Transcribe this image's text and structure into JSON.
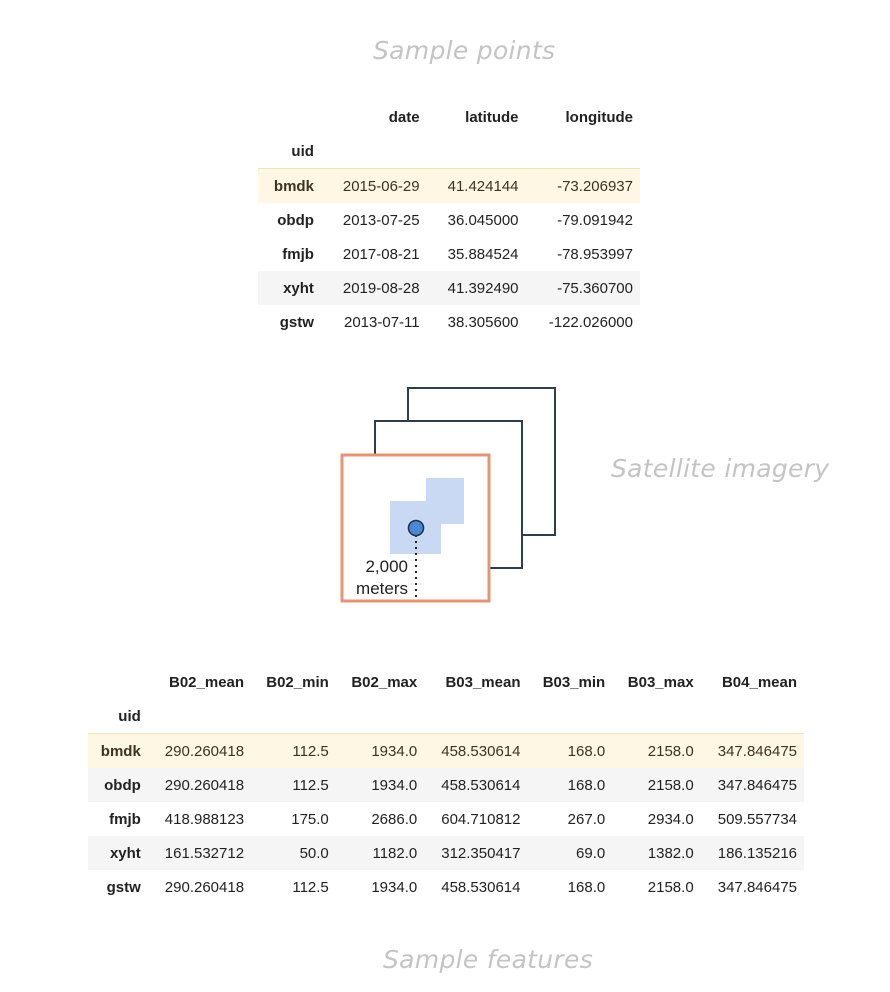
{
  "captions": {
    "top": "Sample points",
    "middle": "Satellite imagery",
    "bottom": "Sample features"
  },
  "points_table": {
    "columns": [
      "date",
      "latitude",
      "longitude"
    ],
    "index_name": "uid",
    "rows": [
      {
        "uid": "bmdk",
        "date": "2015-06-29",
        "latitude": "41.424144",
        "longitude": "-73.206937"
      },
      {
        "uid": "obdp",
        "date": "2013-07-25",
        "latitude": "36.045000",
        "longitude": "-79.091942"
      },
      {
        "uid": "fmjb",
        "date": "2017-08-21",
        "latitude": "35.884524",
        "longitude": "-78.953997"
      },
      {
        "uid": "xyht",
        "date": "2019-08-28",
        "latitude": "41.392490",
        "longitude": "-75.360700"
      },
      {
        "uid": "gstw",
        "date": "2013-07-11",
        "latitude": "38.305600",
        "longitude": "-122.026000"
      }
    ]
  },
  "diagram": {
    "distance_value": "2,000",
    "distance_unit": "meters",
    "colors": {
      "front_frame": "#e69476",
      "back_frame": "#2f3e4a",
      "pixel_fill": "#c9d8f3",
      "point_fill": "#4a88d4"
    }
  },
  "features_table": {
    "columns": [
      "B02_mean",
      "B02_min",
      "B02_max",
      "B03_mean",
      "B03_min",
      "B03_max",
      "B04_mean"
    ],
    "index_name": "uid",
    "rows": [
      {
        "uid": "bmdk",
        "values": [
          "290.260418",
          "112.5",
          "1934.0",
          "458.530614",
          "168.0",
          "2158.0",
          "347.846475"
        ]
      },
      {
        "uid": "obdp",
        "values": [
          "290.260418",
          "112.5",
          "1934.0",
          "458.530614",
          "168.0",
          "2158.0",
          "347.846475"
        ]
      },
      {
        "uid": "fmjb",
        "values": [
          "418.988123",
          "175.0",
          "2686.0",
          "604.710812",
          "267.0",
          "2934.0",
          "509.557734"
        ]
      },
      {
        "uid": "xyht",
        "values": [
          "161.532712",
          "50.0",
          "1182.0",
          "312.350417",
          "69.0",
          "1382.0",
          "186.135216"
        ]
      },
      {
        "uid": "gstw",
        "values": [
          "290.260418",
          "112.5",
          "1934.0",
          "458.530614",
          "168.0",
          "2158.0",
          "347.846475"
        ]
      }
    ]
  }
}
